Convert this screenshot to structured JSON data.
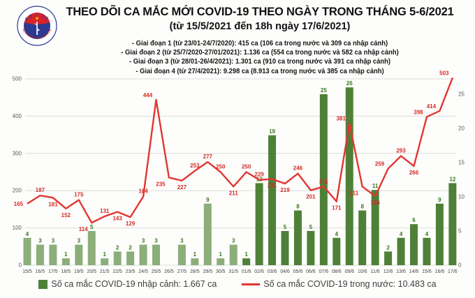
{
  "logo": {
    "top_text": "BỘ Y TẾ",
    "bottom_text": "MINISTRY OF HEALTH"
  },
  "chart_data": {
    "type": "combo_bar_line",
    "title": "THEO DÕI CA MẮC MỚI COVID-19 THEO NGÀY TRONG THÁNG 5-6/2021",
    "subtitle": "(từ 15/5/2021 đến 18h ngày 17/6/2021)",
    "annotations": [
      "- Giai đoạn 1 (từ 23/01-24/7/2020): 415 ca (106 ca trong nước và 309 ca nhập cảnh)",
      "- Giai đoạn 2 (từ 25/7/2020-27/01/2021): 1.136 ca (554 ca trong nước và 582 ca nhập cảnh)",
      "- Giai đoạn 3 (từ 28/01-26/4/2021): 1.301 ca (910 ca trong nước và 391 ca nhập cảnh)",
      "- Giai đoạn 4 (từ 27/4/2021): 9.298 ca (8.913 ca trong nước và 385 ca nhập cảnh)"
    ],
    "categories": [
      "15/5",
      "16/5",
      "17/5",
      "18/5",
      "19/5",
      "20/5",
      "21/5",
      "22/5",
      "23/5",
      "24/5",
      "25/5",
      "26/5",
      "27/5",
      "28/5",
      "29/5",
      "30/5",
      "31/5",
      "01/6",
      "02/6",
      "03/6",
      "04/6",
      "05/6",
      "06/6",
      "07/6",
      "08/6",
      "09/6",
      "10/6",
      "11/6",
      "12/6",
      "13/6",
      "14/6",
      "15/6",
      "16/6",
      "17/6"
    ],
    "series": [
      {
        "name": "Số ca mắc COVID-19 nhập cảnh: 1.667 ca",
        "type": "bar",
        "axis": "right",
        "values": [
          4,
          3,
          3,
          1,
          3,
          5,
          1,
          2,
          2,
          3,
          3,
          0,
          3,
          1,
          9,
          1,
          3,
          1,
          12,
          19,
          5,
          8,
          5,
          25,
          4,
          26,
          8,
          11,
          2,
          4,
          6,
          4,
          9,
          12
        ]
      },
      {
        "name": "Số ca mắc COVID-19 trong nước: 10.483 ca",
        "type": "line",
        "axis": "left",
        "values": [
          165,
          187,
          181,
          152,
          175,
          114,
          131,
          143,
          129,
          184,
          444,
          235,
          227,
          253,
          277,
          250,
          211,
          250,
          229,
          231,
          219,
          246,
          201,
          211,
          171,
          381,
          211,
          185,
          259,
          293,
          266,
          398,
          414,
          503
        ],
        "label_positions": [
          "l",
          "a",
          "b",
          "b",
          "a",
          "bl",
          "a",
          "b",
          "b",
          "a",
          "al",
          "bl",
          "b",
          "a",
          "a",
          "a",
          "b",
          "a",
          "a",
          "b",
          "b",
          "a",
          "b",
          "a",
          "b",
          "al",
          "bl",
          "b",
          "al",
          "a",
          "b",
          "al",
          "al",
          "al"
        ]
      }
    ],
    "left_axis": {
      "min": 0,
      "max": 500,
      "step": 100
    },
    "right_axis": {
      "min": 0,
      "max": 25,
      "step": 5
    },
    "grid": "horizontal",
    "legend_position": "bottom",
    "bar_color_split_index": 17,
    "colors": {
      "bar_may": "#8cae7a",
      "bar_june": "#4e8137",
      "bar_label": "#38761d",
      "line": "#e13632",
      "line_label": "#d62a26",
      "grid": "#dcdcdc",
      "axis_text": "#595959",
      "tick_text": "#444444"
    }
  }
}
